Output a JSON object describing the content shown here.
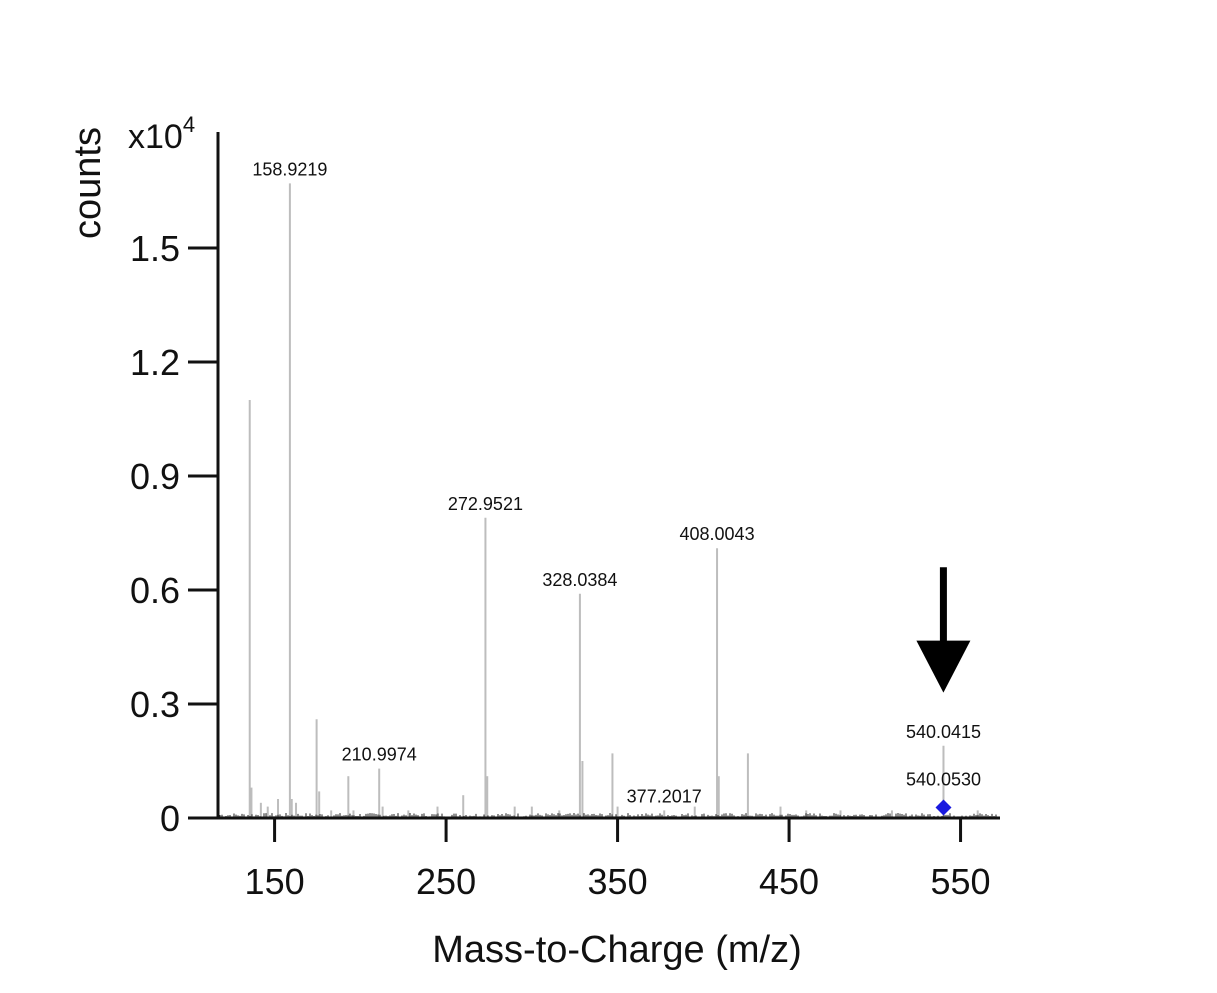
{
  "chart_data": {
    "type": "bar",
    "title": "",
    "xlabel": "Mass-to-Charge (m/z)",
    "ylabel": "counts",
    "y_multiplier": "x10",
    "y_multiplier_exponent": "4",
    "xlim": [
      117,
      573
    ],
    "ylim": [
      0,
      1.8
    ],
    "xticks": [
      {
        "value": 150,
        "label": "150"
      },
      {
        "value": 250,
        "label": "250"
      },
      {
        "value": 350,
        "label": "350"
      },
      {
        "value": 450,
        "label": "450"
      },
      {
        "value": 550,
        "label": "550"
      }
    ],
    "yticks": [
      {
        "value": 0,
        "label": "0"
      },
      {
        "value": 0.3,
        "label": "0.3"
      },
      {
        "value": 0.6,
        "label": "0.6"
      },
      {
        "value": 0.9,
        "label": "0.9"
      },
      {
        "value": 1.2,
        "label": "1.2"
      },
      {
        "value": 1.5,
        "label": "1.5"
      }
    ],
    "peaks": [
      {
        "mz": 135.5,
        "counts": 1.1
      },
      {
        "mz": 136.5,
        "counts": 0.08
      },
      {
        "mz": 142,
        "counts": 0.04
      },
      {
        "mz": 146,
        "counts": 0.03
      },
      {
        "mz": 152,
        "counts": 0.05
      },
      {
        "mz": 158.9219,
        "counts": 1.67,
        "label": "158.9219"
      },
      {
        "mz": 160,
        "counts": 0.05
      },
      {
        "mz": 162.5,
        "counts": 0.04
      },
      {
        "mz": 174.5,
        "counts": 0.26
      },
      {
        "mz": 176,
        "counts": 0.07
      },
      {
        "mz": 183,
        "counts": 0.02
      },
      {
        "mz": 193,
        "counts": 0.11
      },
      {
        "mz": 196,
        "counts": 0.02
      },
      {
        "mz": 210.9974,
        "counts": 0.13,
        "label": "210.9974"
      },
      {
        "mz": 213,
        "counts": 0.03
      },
      {
        "mz": 228,
        "counts": 0.02
      },
      {
        "mz": 245,
        "counts": 0.03
      },
      {
        "mz": 260,
        "counts": 0.06
      },
      {
        "mz": 272.9521,
        "counts": 0.79,
        "label": "272.9521"
      },
      {
        "mz": 274,
        "counts": 0.11
      },
      {
        "mz": 290,
        "counts": 0.03
      },
      {
        "mz": 300,
        "counts": 0.03
      },
      {
        "mz": 316,
        "counts": 0.02
      },
      {
        "mz": 328.0384,
        "counts": 0.59,
        "label": "328.0384"
      },
      {
        "mz": 329.5,
        "counts": 0.15
      },
      {
        "mz": 347,
        "counts": 0.17
      },
      {
        "mz": 350,
        "counts": 0.03
      },
      {
        "mz": 377.2017,
        "counts": 0.02,
        "label": "377.2017"
      },
      {
        "mz": 395,
        "counts": 0.03
      },
      {
        "mz": 408.0043,
        "counts": 0.71,
        "label": "408.0043"
      },
      {
        "mz": 409,
        "counts": 0.11
      },
      {
        "mz": 426,
        "counts": 0.17
      },
      {
        "mz": 445,
        "counts": 0.03
      },
      {
        "mz": 460,
        "counts": 0.02
      },
      {
        "mz": 480,
        "counts": 0.02
      },
      {
        "mz": 510,
        "counts": 0.02
      },
      {
        "mz": 540.0415,
        "counts": 0.19,
        "label": "540.0415"
      },
      {
        "mz": 560,
        "counts": 0.02
      }
    ],
    "annotations": [
      {
        "type": "marker",
        "shape": "diamond",
        "mz": 540.053,
        "counts": 0.025,
        "label": "540.0530",
        "color": "#1a1adf"
      },
      {
        "type": "arrow",
        "mz": 540,
        "counts_from": 0.66,
        "counts_to": 0.33,
        "color": "#000000"
      }
    ],
    "colors": {
      "peaks": "#bdbdbd",
      "axes": "#111111",
      "baseline": "#222222"
    },
    "grid": false,
    "legend": "none"
  }
}
